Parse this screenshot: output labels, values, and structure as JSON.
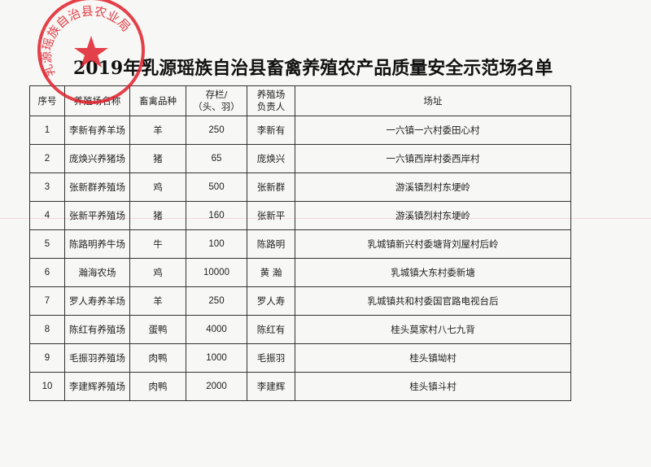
{
  "title": "2019年乳源瑶族自治县畜禽养殖农产品质量安全示范场名单",
  "stamp": {
    "text": "乳源瑶族自治县农业局",
    "color": "#e0202a"
  },
  "table": {
    "headers": [
      "序号",
      "养殖场名称",
      "畜禽品种",
      "存栏/\n（头、羽）",
      "养殖场\n负责人",
      "场址"
    ],
    "rows": [
      [
        "1",
        "李新有养羊场",
        "羊",
        "250",
        "李新有",
        "一六镇一六村委田心村"
      ],
      [
        "2",
        "庞焕兴养猪场",
        "猪",
        "65",
        "庞焕兴",
        "一六镇西岸村委西岸村"
      ],
      [
        "3",
        "张新群养殖场",
        "鸡",
        "500",
        "张新群",
        "游溪镇烈村东埂岭"
      ],
      [
        "4",
        "张新平养殖场",
        "猪",
        "160",
        "张新平",
        "游溪镇烈村东埂岭"
      ],
      [
        "5",
        "陈路明养牛场",
        "牛",
        "100",
        "陈路明",
        "乳城镇新兴村委塘背刘屋村后岭"
      ],
      [
        "6",
        "瀚海农场",
        "鸡",
        "10000",
        "黄  瀚",
        "乳城镇大东村委新塘"
      ],
      [
        "7",
        "罗人寿养羊场",
        "羊",
        "250",
        "罗人寿",
        "乳城镇共和村委国官路电视台后"
      ],
      [
        "8",
        "陈红有养殖场",
        "蛋鸭",
        "4000",
        "陈红有",
        "桂头莫家村八七九背"
      ],
      [
        "9",
        "毛振羽养殖场",
        "肉鸭",
        "1000",
        "毛振羽",
        "桂头镇坳村"
      ],
      [
        "10",
        "李建辉养殖场",
        "肉鸭",
        "2000",
        "李建辉",
        "桂头镇斗村"
      ]
    ]
  }
}
